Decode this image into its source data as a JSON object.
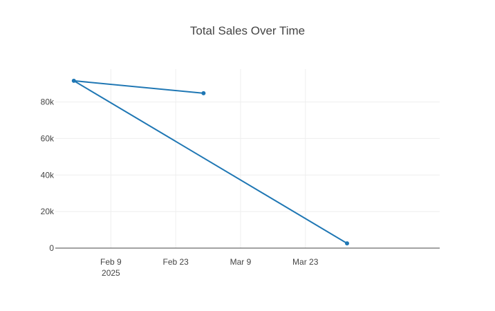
{
  "chart_data": {
    "type": "line",
    "title": "Total Sales Over Time",
    "xlabel": "",
    "ylabel": "",
    "x_axis": {
      "type": "date",
      "range": [
        "2025-01-28",
        "2025-04-21"
      ],
      "ticks": [
        {
          "value": "2025-02-09",
          "label": "Feb 9",
          "sublabel": "2025"
        },
        {
          "value": "2025-02-23",
          "label": "Feb 23",
          "sublabel": ""
        },
        {
          "value": "2025-03-09",
          "label": "Mar 9",
          "sublabel": ""
        },
        {
          "value": "2025-03-23",
          "label": "Mar 23",
          "sublabel": ""
        }
      ]
    },
    "y_axis": {
      "range": [
        0,
        98000
      ],
      "ticks": [
        {
          "value": 0,
          "label": "0"
        },
        {
          "value": 20000,
          "label": "20k"
        },
        {
          "value": 40000,
          "label": "40k"
        },
        {
          "value": 60000,
          "label": "60k"
        },
        {
          "value": 80000,
          "label": "80k"
        }
      ]
    },
    "grid": true,
    "series": [
      {
        "color": "#1f77b4",
        "x": [
          "2025-03-01",
          "2025-02-01",
          "2025-04-01"
        ],
        "y": [
          84800,
          91600,
          2600
        ]
      }
    ]
  }
}
